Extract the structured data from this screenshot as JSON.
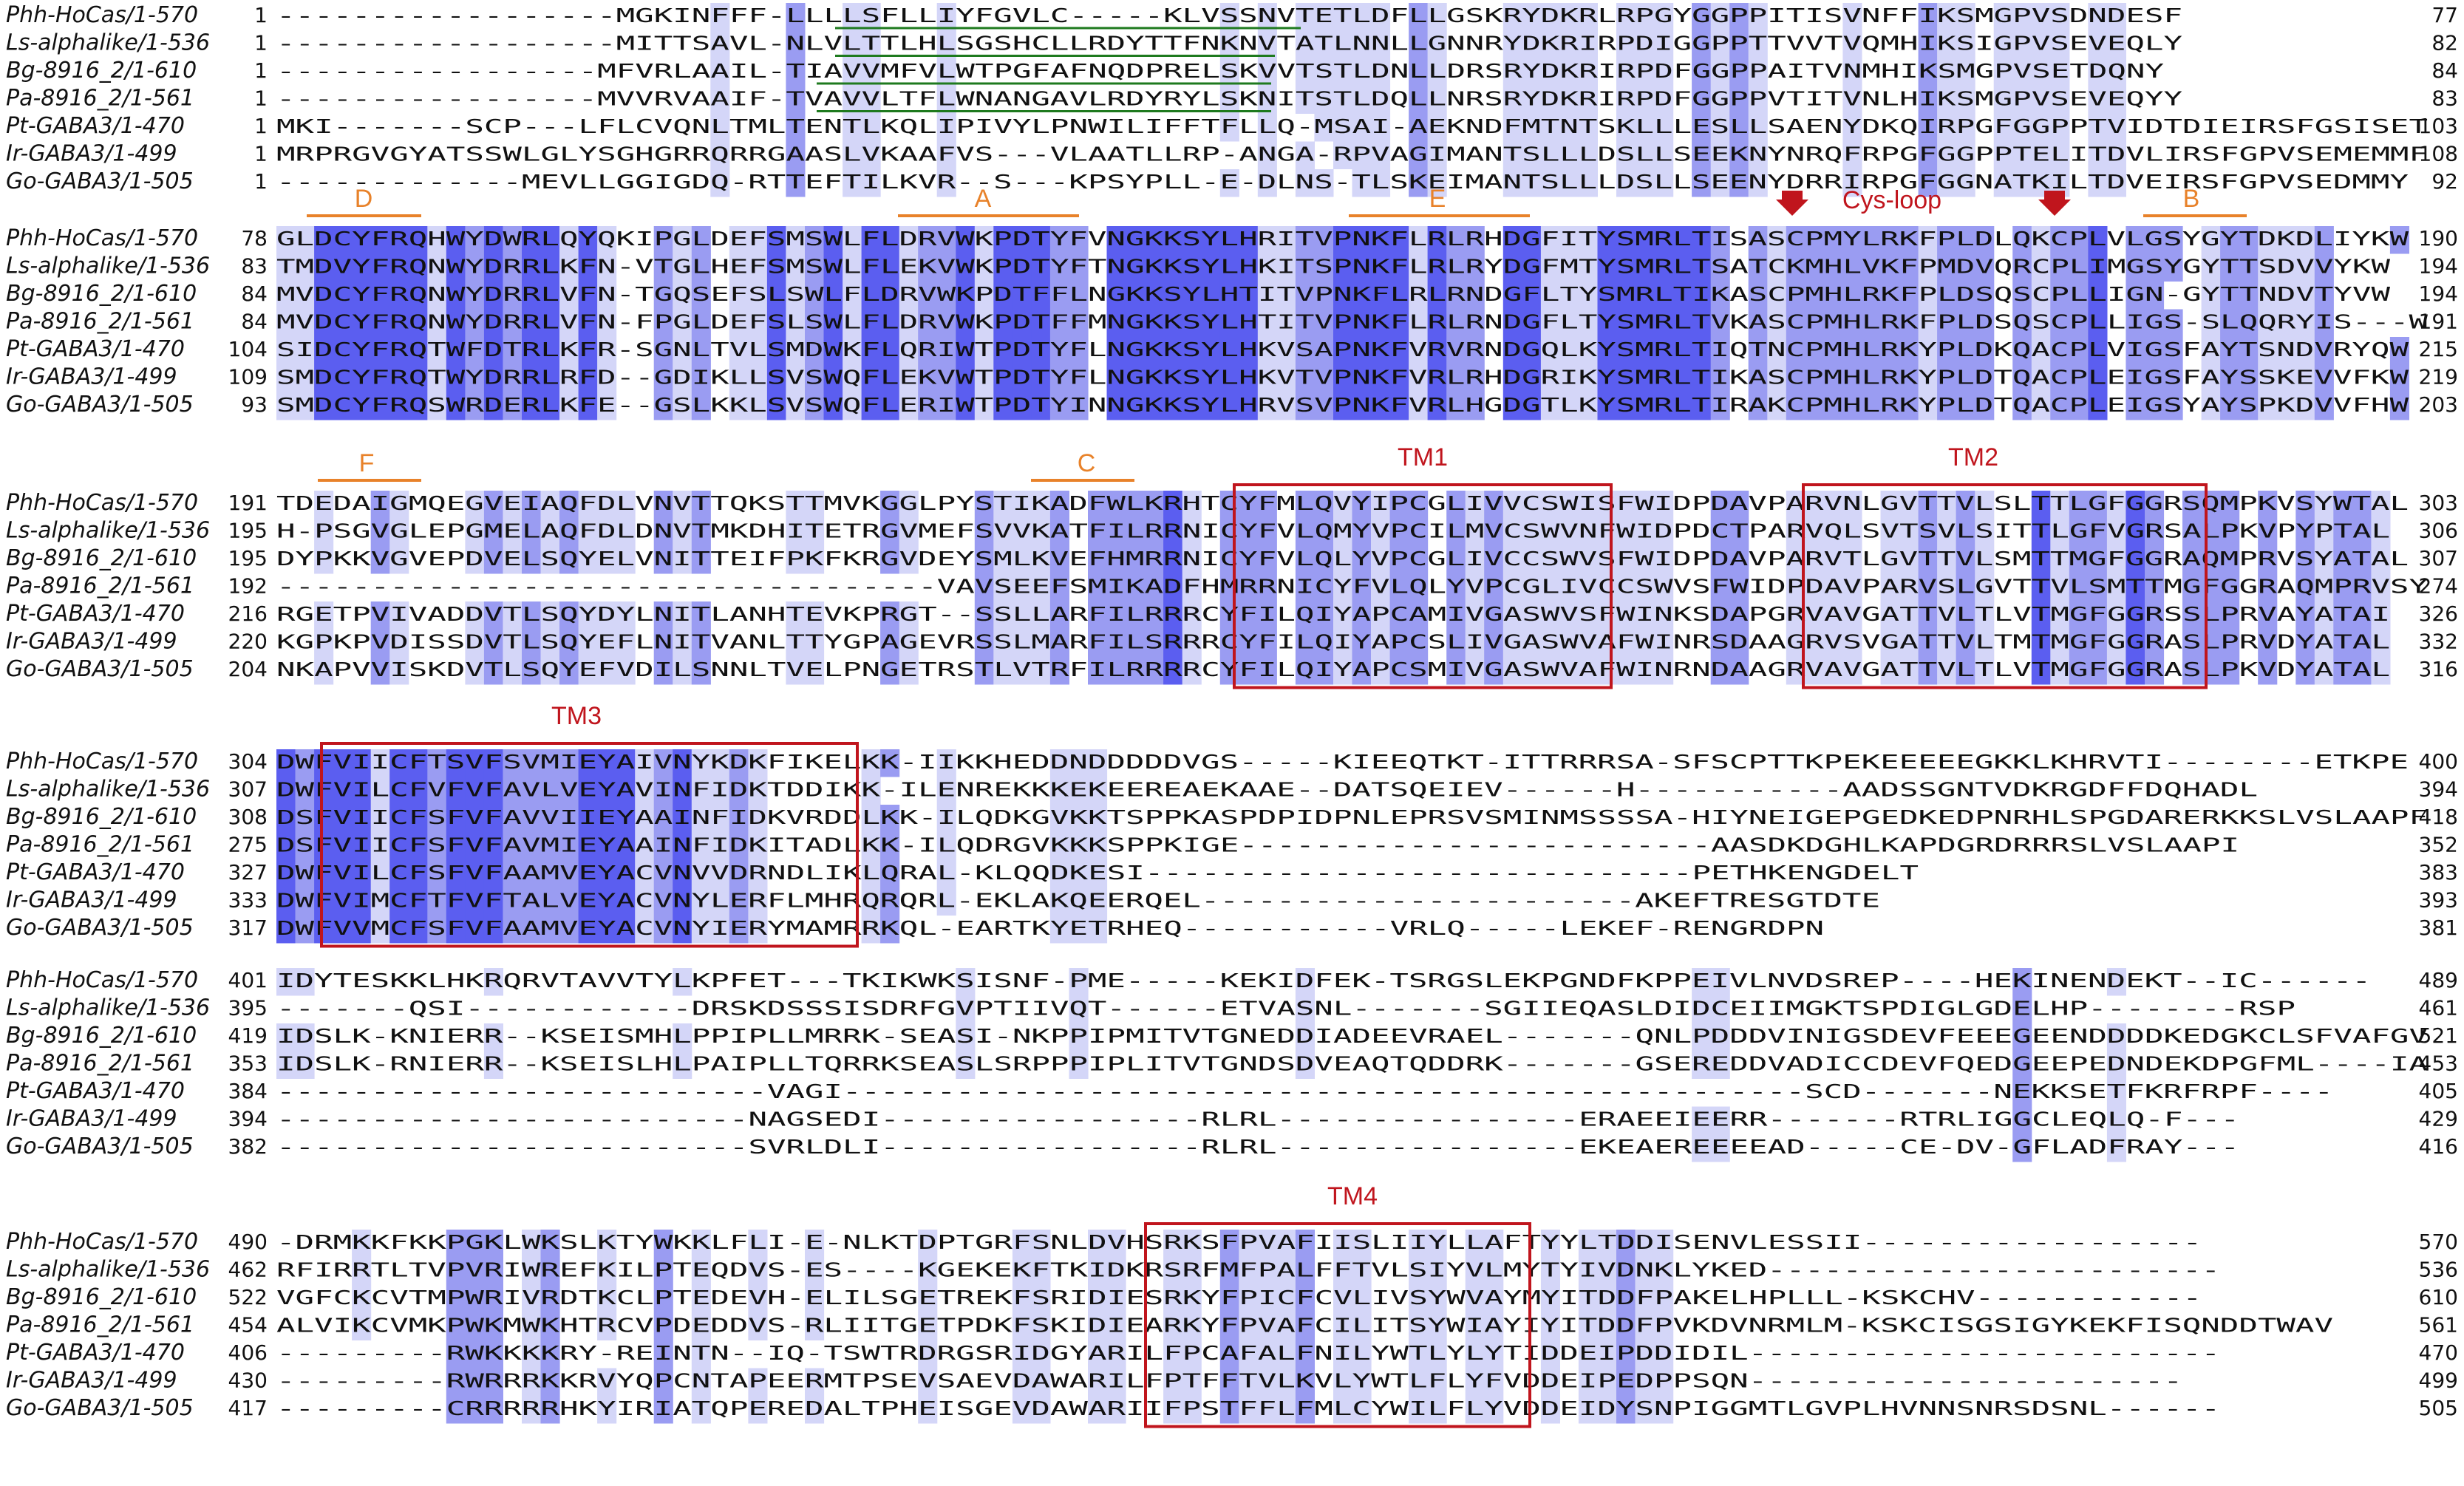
{
  "figure": {
    "colors": {
      "conserved_high": "#5b5ef0",
      "conserved_mid": "#9a9cf2",
      "conserved_low": "#d4d6f8",
      "feature_box": "#c0151d",
      "loop_annotation": "#e8822a",
      "signal_peptide": "#1e7a1e",
      "residue_text": "#111111",
      "cysloop_text": "#c0151d"
    },
    "blocks": [
      {
        "rows": [
          {
            "label": "Phh-HoCas/1-570",
            "start": "1",
            "end": "77",
            "seq": "------------------MGKINFFF-LLLLSFLLIYFGVLC-----KLVSSNVTETLDFLLGSKRYDKRLRPGYGGPPITISVNFFIKSMGPVSDNDESF"
          },
          {
            "label": "Ls-alphalike/1-536",
            "start": "1",
            "end": "82",
            "seq": "------------------MITTSAVL-NLVLTTLHLSGSHCLLRDYTTFNKNVTATLNNLLGNNRYDKRIRPDIGGPPTTVVTVQMHIKSIGPVSEVEQLY"
          },
          {
            "label": "Bg-8916_2/1-610",
            "start": "1",
            "end": "84",
            "seq": "-----------------MFVRLAAIL-TIAVVMFVLWTPGFAFNQDPRELSKVVTSTLDNLLDRSRYDKRIRPDFGGPPAITVNMHIKSMGPVSETDQNY"
          },
          {
            "label": "Pa-8916_2/1-561",
            "start": "1",
            "end": "83",
            "seq": "-----------------MVVRVAAIF-TVAVVLTFLWNANGAVLRDYRYLSKNITSTLDQLLNRSRYDKRIRPDFGGPPVTITVNLHIKSMGPVSEVEQYY"
          },
          {
            "label": "Pt-GABA3/1-470",
            "start": "1",
            "end": "103",
            "seq": "MKI-------SCP---LFLCVQNLTMLTENTLKQLIPIVYLPNWILIFFTFLLQ-MSAI-AEKNDFMTNTSKLLLESLLSAENYDKQIRPGFGGPPTVIDTDIEIRSFGSISETDMLF"
          },
          {
            "label": "Ir-GABA3/1-499",
            "start": "1",
            "end": "108",
            "seq": "MRPRGVGYATSSWLGLYSGHGRRQRRGAASLVKAAFVS---VLAATLLRP-ANGA-RPVAGIMANTSLLLDSLLSEEKNYNRQFRPGFGGPPTELITDVLIRSFGPVSEMEMMF"
          },
          {
            "label": "Go-GABA3/1-505",
            "start": "1",
            "end": "92",
            "seq": "-------------MEVLLGGIGDQ-RTTEFTILKVR--S---KPSYPLL-E-DLNS-TLSKEIMANTSLLLDSLLSEENYDRRIRPGFGGNATKILTDVEIRSFGPVSEDMMY"
          }
        ],
        "annotations": []
      },
      {
        "rows": [
          {
            "label": "Phh-HoCas/1-570",
            "start": "78",
            "end": "190",
            "seq": "GLDCYFRQHWYDWRLQYQKIPGLDEFSMSWLFLDRVWKPDTYFVNGKKSYLHRITVPNKFLRLRHDGFITYSMRLTISASCPMYLRKFPLDLQKCPLVLGSYGYTDKDLIYKW"
          },
          {
            "label": "Ls-alphalike/1-536",
            "start": "83",
            "end": "194",
            "seq": "TMDVYFRQNWYDRRLKFN-VTGLHEFSMSWLFLEKVWKPDTYFTNGKKSYLHKITSPNKFLRLRYDGFMTYSMRLTSATCKMHLVKFPMDVQRCPLIMGSYGYTTSDVVYKW"
          },
          {
            "label": "Bg-8916_2/1-610",
            "start": "84",
            "end": "194",
            "seq": "MVDCYFRQNWYDRRLVFN-TGQSEFSLSWLFLDRVWKPDTFFLNGKKSYLHTITVPNKFLRLRNDGFLTYSMRLTIKASCPMHLRKFPLDSQSCPLLIGN-GYTTNDVTYVW"
          },
          {
            "label": "Pa-8916_2/1-561",
            "start": "84",
            "end": "191",
            "seq": "MVDCYFRQNWYDRRLVFN-FPGLDEFSLSWLFLDRVWKPDTFFMNGKKSYLHTITVPNKFLRLRNDGFLTYSMRLTVKASCPMHLRKFPLDSQSCPLLIGS-SLQQRYIS---W"
          },
          {
            "label": "Pt-GABA3/1-470",
            "start": "104",
            "end": "215",
            "seq": "SIDCYFRQTWFDTRLKFR-SGNLTVLSMDWKFLQRIWTPDTYFLNGKKSYLHKVSAPNKFVRVRNDGQLKYSMRLTIQTNCPMHLRKYPLDKQACPLVIGSFAYTSNDVRYQW"
          },
          {
            "label": "Ir-GABA3/1-499",
            "start": "109",
            "end": "219",
            "seq": "SMDCYFRQTWYDRRLRFD--GDIKLLSVSWQFLEKVWTPDTYFLNGKKSYLHKVTVPNKFVRLRHDGRIKYSMRLTIKASCPMHLRKYPLDTQACPLEIGSFAYSSKEVVFKW"
          },
          {
            "label": "Go-GABA3/1-505",
            "start": "93",
            "end": "203",
            "seq": "SMDCYFRQSWRDERLKFE--GSLKKLSVSWQFLERIWTPDTYINNGKKSYLHRVSVPNKFVRLHGDGTLKYSMRLTIRAKCPMHLRKYPLDTQACPLEIGSYAYSPKDVVFHW"
          }
        ],
        "annotations": [
          {
            "kind": "loop",
            "text": "D"
          },
          {
            "kind": "loop",
            "text": "A"
          },
          {
            "kind": "loop",
            "text": "E"
          },
          {
            "kind": "cys",
            "text": "Cys-loop"
          },
          {
            "kind": "loop",
            "text": "B"
          }
        ]
      },
      {
        "rows": [
          {
            "label": "Phh-HoCas/1-570",
            "start": "191",
            "end": "303",
            "seq": "TDEDAIGMQEGVEIAQFDLVNVTTQKSTTMVKGGLPYSTIKADFWLKRHTCYFMLQVYIPCGLIVVCSWISFWIDPDAVPARVNLGVTTVLSLTTLGFGGRSQMPKVSYWTAL"
          },
          {
            "label": "Ls-alphalike/1-536",
            "start": "195",
            "end": "306",
            "seq": "H-PSGVGLEPGMELAQFDLDNVTMKDHITETRGVMEFSVVKATFILRRNICYFVLQMYVPCILMVCSWVNFWIDPDCTPARVQLSVTSVLSITTLGFVGRSALPKVPYPTAL"
          },
          {
            "label": "Bg-8916_2/1-610",
            "start": "195",
            "end": "307",
            "seq": "DYPKKVGVEPDVELSQYELVNITTEIFPKFKRGVDEYSMLKVEFHMRRNICYFVLQLYVPCGLIVCCSWVSFWIDPDAVPARVTLGVTTVLSMTTMGFGGRAQMPRVSYATAL"
          },
          {
            "label": "Pa-8916_2/1-561",
            "start": "192",
            "end": "274",
            "seq": "-----------------------------------VAVSEEFSMIKADFHMRRNICYFVLQLYVPCGLIVCCSWVSFWIDPDAVPARVSLGVTTVLSMTTMGFGGRAQMPRVSYATAL"
          },
          {
            "label": "Pt-GABA3/1-470",
            "start": "216",
            "end": "326",
            "seq": "RGETPVIVADDVTLSQYDYLNITLANHTEVKPRGT--SSLLARFILRRRCYFILQIYAPCAMIVGASWVSFWINKSDAPGRVAVGATTVLTLVTMGFGGRSSLPRVAYATAI"
          },
          {
            "label": "Ir-GABA3/1-499",
            "start": "220",
            "end": "332",
            "seq": "KGPKPVDISSDVTLSQYEFLNITVANLTTYGPAGEVRSSLMARFILSRRRCYFILQIYAPCSLIVGASWVAFWINRSDAAGRVSVGATTVLTMTMGFGGRASLPRVDYATAL"
          },
          {
            "label": "Go-GABA3/1-505",
            "start": "204",
            "end": "316",
            "seq": "NKAPVVISKDVTLSQYEFVDILSNNLTVELPNGETRSTLVTRFILRRRRCYFILQIYAPCSMIVGASWVAFWINRNDAAGRVAVGATTVLTLVTMGFGGRASLPKVDYATAL"
          }
        ],
        "annotations": [
          {
            "kind": "loop",
            "text": "F"
          },
          {
            "kind": "loop",
            "text": "C"
          },
          {
            "kind": "tm",
            "text": "TM1"
          },
          {
            "kind": "tm",
            "text": "TM2"
          }
        ]
      },
      {
        "rows": [
          {
            "label": "Phh-HoCas/1-570",
            "start": "304",
            "end": "400",
            "seq": "DWFVIICFTSVFSVMIEYAIVNYKDKFIKELKK-IIKKHEDDNDDDDDVGS-----KIEEQTKT-ITTRRRSA-SFSCPTTKPEKEEEEEGKKLKHRVTI--------ETKPE"
          },
          {
            "label": "Ls-alphalike/1-536",
            "start": "307",
            "end": "394",
            "seq": "DWFVILCFVFVFAVLVEYAVINFIDKTDDIKK-ILENREKKKEKEEREAEKAAE--DATSQEIEV------H-----------AADSSGNTVDKRGDFFDQHADL"
          },
          {
            "label": "Bg-8916_2/1-610",
            "start": "308",
            "end": "418",
            "seq": "DSFVIICFSFVFAVVIIEYAAINFIDKVRDDLKK-ILQDKGVKKTSPPKASPDPIDPNLEPRSVSMINMSSSSA-HIYNEIGEPGEDKEDPNRHLSPGDARERKKSLVSLAAPF"
          },
          {
            "label": "Pa-8916_2/1-561",
            "start": "275",
            "end": "352",
            "seq": "DSFVIICFSFVFAVMIEYAAINFIDKITADLKK-ILQDRGVKKKSPPKIGE-------------------------AASDKDGHLKAPDGRDRRRSLVSLAAPI"
          },
          {
            "label": "Pt-GABA3/1-470",
            "start": "327",
            "end": "383",
            "seq": "DWFVILCFSFVFAAMVEYACVNVVDRNDLIKLQRAL-KLQQDKESI-----------------------------PETHKENGDELT"
          },
          {
            "label": "Ir-GABA3/1-499",
            "start": "333",
            "end": "393",
            "seq": "DWFVIMCFTFVFTALVEYACVNYLERFLMHRQRQRL-EKLAKQEERQEL-----------------------AKEFTRESGTDTE"
          },
          {
            "label": "Go-GABA3/1-505",
            "start": "317",
            "end": "381",
            "seq": "DWFVVMCFSFVFAAMVEYACVNYIERYMAMRRKQL-EARTKYETRHEQ-----------VRLQ-----LEKEF-RENGRDPN"
          }
        ],
        "annotations": [
          {
            "kind": "tm",
            "text": "TM3"
          }
        ]
      },
      {
        "rows": [
          {
            "label": "Phh-HoCas/1-570",
            "start": "401",
            "end": "489",
            "seq": "IDYTESKKLHKRQRVTAVVTYLKPFET---TKIKWKSISNF-PME-----KEKIDFEK-TSRGSLEKPGNDFKPPEIVLNVDSREP----HEKINENDEKT--IC------"
          },
          {
            "label": "Ls-alphalike/1-536",
            "start": "395",
            "end": "461",
            "seq": "-------QSI------------DRSKDSSSISDRFGVPTIIVQT------ETVASNL-------SGIIEQASLDIDCEIIMGKTSPDIGLGDELHP--------RSP"
          },
          {
            "label": "Bg-8916_2/1-610",
            "start": "419",
            "end": "521",
            "seq": "IDSLK-KNIERR--KSEISMHLPPIPLLMRRK-SEASI-NKPPIPMITVTGNEDDIADEEVRAEL-------QNLPDDDVINIGSDEVFEEEGEENDDDDKEDGKCLSFVAFGV"
          },
          {
            "label": "Pa-8916_2/1-561",
            "start": "353",
            "end": "453",
            "seq": "IDSLK-RNIERR--KSEISLHLPAIPLLTQRRKSEASLSRPPPIPLITVTGNDSDVEAQTQDDRK-------GSEREDDVADICCDEVFQEDGEEPEDNDEKDPGFML----IAL"
          },
          {
            "label": "Pt-GABA3/1-470",
            "start": "384",
            "end": "405",
            "seq": "--------------------------VAGI---------------------------------------------------SCD-------NEKKSETFKRFRPF----"
          },
          {
            "label": "Ir-GABA3/1-499",
            "start": "394",
            "end": "429",
            "seq": "-------------------------NAGSEDI-----------------RLRL----------------ERAEEIEERR-------RTRLIGGCLEQLQ-F---"
          },
          {
            "label": "Go-GABA3/1-505",
            "start": "382",
            "end": "416",
            "seq": "-------------------------SVRLDLI-----------------RLRL----------------EKEAEREEEEAD-----CE-DV-GFLADFRAY---"
          }
        ],
        "annotations": []
      },
      {
        "rows": [
          {
            "label": "Phh-HoCas/1-570",
            "start": "490",
            "end": "570",
            "seq": "-DRMKKFKKPGKLWKSLKTYWKKLFLI-E-NLKTDPTGRFSNLDVHSRKSFPVAFIISLIIYLLAFTYYLTDDISENVLESSII------------------"
          },
          {
            "label": "Ls-alphalike/1-536",
            "start": "462",
            "end": "536",
            "seq": "RFIRRTLTVPVRIWREFKILPTEQDVS-ES----KGEKEKFTKIDKRSRFMFPALFFTVLSIYVLMYTYIVDNKLYKED------------------------"
          },
          {
            "label": "Bg-8916_2/1-610",
            "start": "522",
            "end": "610",
            "seq": "VGFCKCVTMPWRIVRDTKCLPTEDEVH-ELILSGETREKFSRIDIESRKYFPICFCVLIVSYWVAYMYITDDFPAKELHPLLL-KSKCHV------------"
          },
          {
            "label": "Pa-8916_2/1-561",
            "start": "454",
            "end": "561",
            "seq": "ALVIKCVMKPWKMWKHTRCVPDEDDVS-RLIITGETPDKFSKIDIEARKYFPVAFCILITSYWIAYIYITDDFPVKDVNRMLM-KSKCISGSIGYKEKFISQNDDTWAV"
          },
          {
            "label": "Pt-GABA3/1-470",
            "start": "406",
            "end": "470",
            "seq": "---------RWKKKKRY-REINTN--IQ-TSWTRDRGSRIDGYARILFPCAFALFNILYWTLYLYTIDDEIPDDIDIL-------------------------"
          },
          {
            "label": "Ir-GABA3/1-499",
            "start": "430",
            "end": "499",
            "seq": "---------RWRRRKKRVYQPCNTAPEERMTPSEVSAEVDAWARILFPTFFTVLKVLYWTLFLYFVDDEIPEDPPSQN-----------------------"
          },
          {
            "label": "Go-GABA3/1-505",
            "start": "417",
            "end": "505",
            "seq": "---------CRRRRRHKYIRIATQPEREDALTPHEISGEVDAWARIIFPSTFFLFMLCYWILFLYVDDEIDYSNPIGGMTLGVPLHVNNSNRSDSNL------"
          }
        ],
        "annotations": [
          {
            "kind": "tm",
            "text": "TM4"
          }
        ]
      }
    ]
  }
}
